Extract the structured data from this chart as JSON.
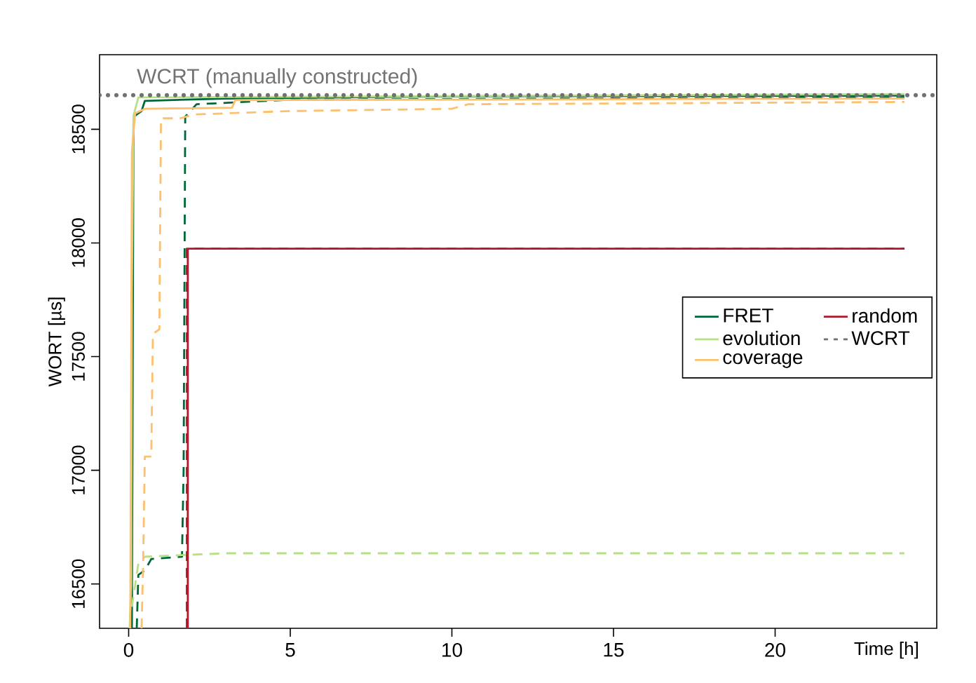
{
  "chart_data": {
    "type": "line",
    "xlabel": "Time [h]",
    "ylabel": "WORT [µs]",
    "xlim": [
      -0.9,
      25
    ],
    "ylim": [
      16305,
      18828
    ],
    "xticks": [
      0,
      5,
      10,
      15,
      20
    ],
    "yticks": [
      16500,
      17000,
      17500,
      18000,
      18500
    ],
    "legend": "right",
    "annotations": [
      {
        "text": "WCRT (manually constructed)",
        "x": 0.2,
        "y": 18650
      }
    ],
    "series": [
      {
        "name": "FRET",
        "color": "#006837",
        "line_style": "solid",
        "x": [
          0.1,
          0.15,
          0.4,
          0.5,
          3,
          10,
          24
        ],
        "values": [
          16305,
          18555,
          18580,
          18625,
          18635,
          18645,
          18648
        ]
      },
      {
        "color": "#006837",
        "line_style": "dashed",
        "x": [
          0.25,
          0.3,
          0.5,
          0.7,
          1.65,
          1.7,
          1.75,
          2.1,
          5,
          24
        ],
        "values": [
          16305,
          16540,
          16560,
          16610,
          16620,
          17000,
          18555,
          18610,
          18630,
          18640
        ]
      },
      {
        "name": "evolution",
        "color": "#b8e186",
        "line_style": "solid",
        "x": [
          0.03,
          0.08,
          0.1,
          0.15,
          0.3,
          24
        ],
        "values": [
          16305,
          16500,
          17800,
          18560,
          18640,
          18655
        ]
      },
      {
        "color": "#b8e186",
        "line_style": "dashed",
        "x": [
          0.1,
          0.3,
          0.5,
          3,
          24
        ],
        "values": [
          16400,
          16590,
          16620,
          16635,
          16635
        ]
      },
      {
        "name": "coverage",
        "color": "#fdc06f",
        "line_style": "solid",
        "x": [
          0.05,
          0.1,
          0.2,
          0.5,
          3.2,
          3.3,
          24
        ],
        "values": [
          16305,
          18400,
          18570,
          18590,
          18595,
          18628,
          18635
        ]
      },
      {
        "color": "#fdc06f",
        "line_style": "dashed",
        "x": [
          0.4,
          0.45,
          0.5,
          0.7,
          0.75,
          0.95,
          1.0,
          1.6,
          2,
          5,
          10,
          10.5,
          24
        ],
        "values": [
          16305,
          16600,
          17060,
          17060,
          17600,
          17620,
          18548,
          18548,
          18565,
          18580,
          18590,
          18610,
          18620
        ]
      },
      {
        "name": "random",
        "color": "#b2182b",
        "line_style": "solid",
        "x": [
          1.83,
          1.83,
          24
        ],
        "values": [
          16305,
          17975,
          17975
        ]
      },
      {
        "color": "#b2182b",
        "line_style": "dashed",
        "x": [
          1.8,
          1.8,
          24
        ],
        "values": [
          16305,
          17975,
          17975
        ]
      },
      {
        "name": "WCRT",
        "color": "#707070",
        "line_style": "dotted",
        "x": [
          -0.9,
          25
        ],
        "values": [
          18650,
          18650
        ]
      }
    ]
  }
}
